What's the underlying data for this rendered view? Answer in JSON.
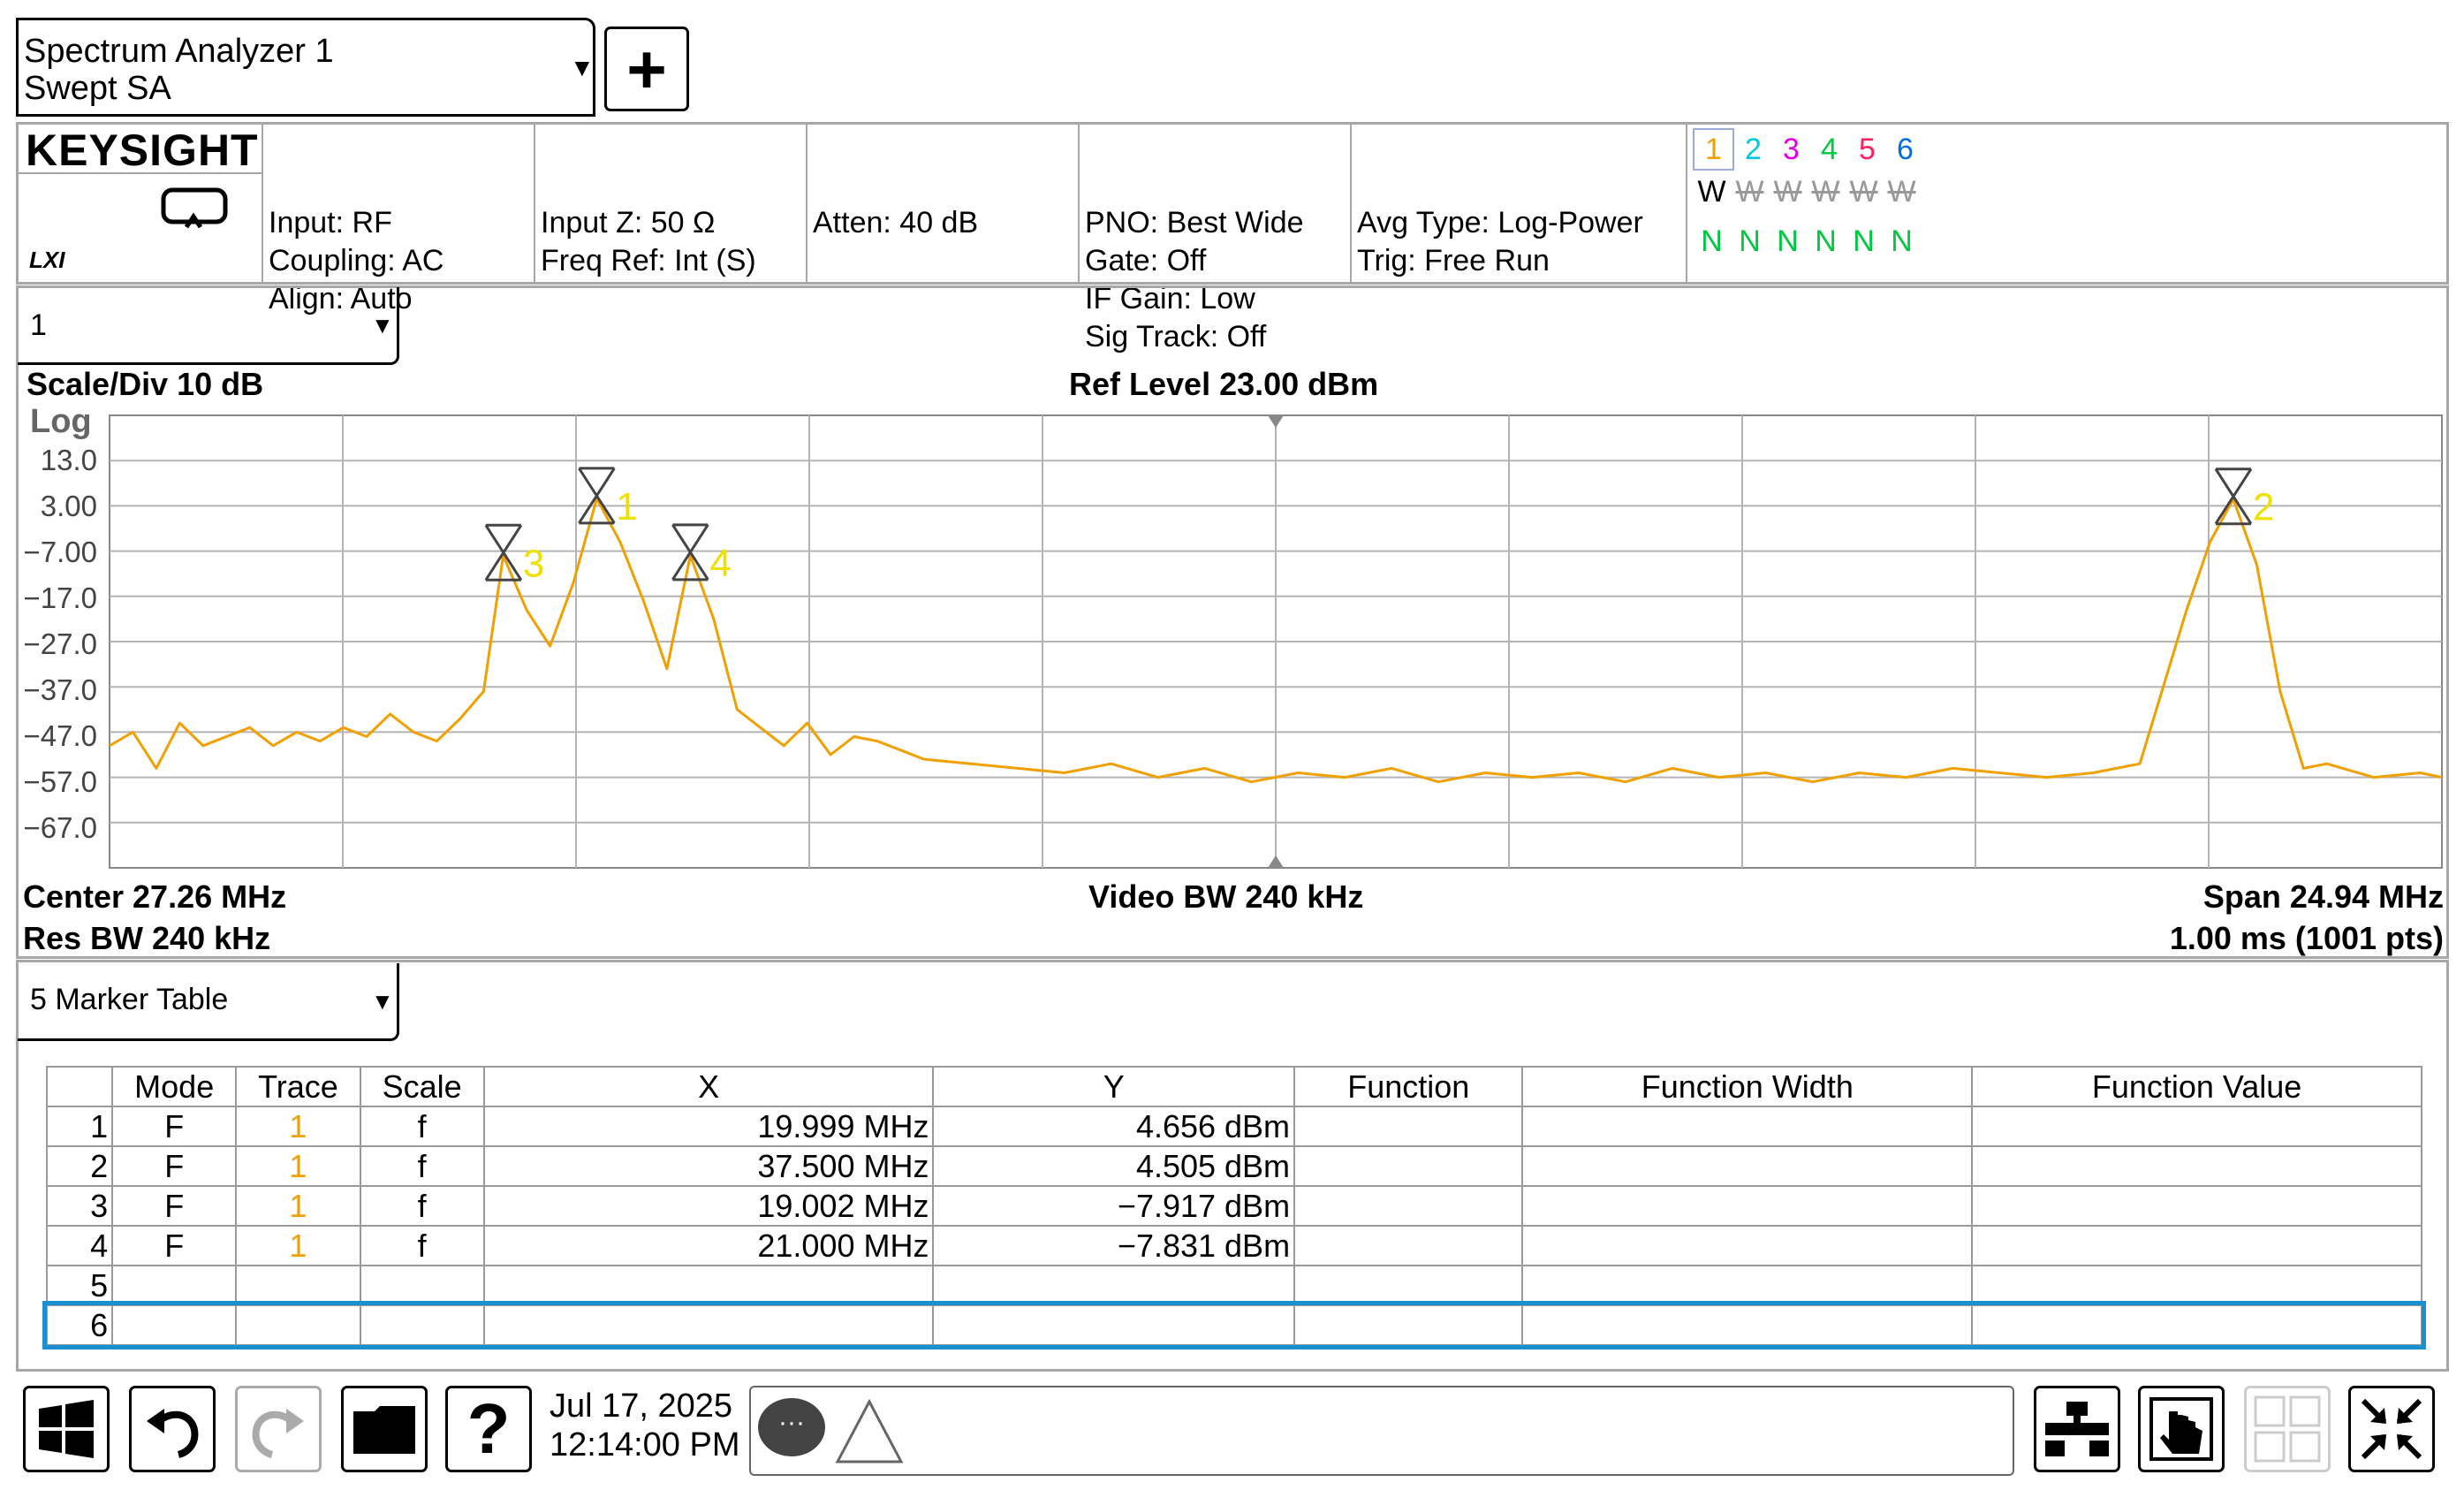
{
  "window": {
    "title_line1": "Spectrum Analyzer 1",
    "title_line2": "Swept SA",
    "dropdown_glyph": "▼",
    "add_glyph": "+"
  },
  "brand": {
    "logo": "KEYSIGHT",
    "lxi": "LXI"
  },
  "status": {
    "col1": [
      "Input: RF",
      "Coupling: AC",
      "Align: Auto"
    ],
    "col2": [
      "Input Z: 50 Ω",
      "",
      "Freq Ref: Int (S)"
    ],
    "col3": [
      "Atten: 40 dB"
    ],
    "col4": [
      "PNO: Best Wide",
      "Gate: Off",
      "IF Gain: Low",
      "Sig Track: Off"
    ],
    "col5": [
      "Avg Type: Log-Power",
      "Trig: Free Run"
    ],
    "traces": {
      "numbers": [
        "1",
        "2",
        "3",
        "4",
        "5",
        "6"
      ],
      "number_colors": [
        "#f0a000",
        "#00c8e0",
        "#e000e0",
        "#00c840",
        "#ff2060",
        "#0070e0"
      ],
      "mode_row": [
        "W",
        "W",
        "W",
        "W",
        "W",
        "W"
      ],
      "det_row": [
        "N",
        "N",
        "N",
        "N",
        "N",
        "N"
      ]
    }
  },
  "window1": {
    "selector": "1",
    "scale": "Scale/Div 10 dB",
    "ref_level": "Ref Level 23.00 dBm",
    "log_label": "Log",
    "y_ticks": [
      "13.0",
      "3.00",
      "−7.00",
      "−17.0",
      "−27.0",
      "−37.0",
      "−47.0",
      "−57.0",
      "−67.0"
    ],
    "center": "Center 27.26 MHz",
    "res_bw": "Res BW 240 kHz",
    "video_bw": "Video BW 240 kHz",
    "span": "Span 24.94 MHz",
    "sweep": "1.00 ms (1001 pts)"
  },
  "chart_data": {
    "type": "line",
    "series": [
      {
        "color": "#f0a000",
        "x": [
          14.79,
          15.04,
          15.29,
          15.54,
          15.79,
          16.04,
          16.29,
          16.54,
          16.79,
          17.04,
          17.29,
          17.54,
          17.79,
          18.04,
          18.29,
          18.54,
          18.79,
          19.0,
          19.25,
          19.5,
          19.75,
          20.0,
          20.25,
          20.5,
          20.75,
          21.0,
          21.25,
          21.5,
          21.75,
          22.0,
          22.25,
          22.5,
          22.75,
          23.0,
          23.5,
          24.0,
          24.5,
          25.0,
          25.5,
          26.0,
          26.5,
          27.0,
          27.5,
          28.0,
          28.5,
          29.0,
          29.5,
          30.0,
          30.5,
          31.0,
          31.5,
          32.0,
          32.5,
          33.0,
          33.5,
          34.0,
          34.5,
          35.0,
          35.5,
          36.0,
          36.5,
          37.0,
          37.25,
          37.5,
          37.75,
          38.0,
          38.25,
          38.5,
          39.0,
          39.5,
          39.73
        ],
        "y": [
          -50,
          -47,
          -55,
          -45,
          -50,
          -48,
          -46,
          -50,
          -47,
          -49,
          -46,
          -48,
          -43,
          -47,
          -49,
          -44,
          -38,
          -8,
          -20,
          -28,
          -14,
          4.6,
          -5,
          -18,
          -33,
          -8,
          -22,
          -42,
          -46,
          -50,
          -45,
          -52,
          -48,
          -49,
          -53,
          -54,
          -55,
          -56,
          -54,
          -57,
          -55,
          -58,
          -56,
          -57,
          -55,
          -58,
          -56,
          -57,
          -56,
          -58,
          -55,
          -57,
          -56,
          -58,
          -56,
          -57,
          -55,
          -56,
          -57,
          -56,
          -54,
          -20,
          -5,
          4.5,
          -10,
          -38,
          -55,
          -54,
          -57,
          -56,
          -57
        ]
      }
    ],
    "xlim": [
      14.79,
      39.73
    ],
    "ylim": [
      -77,
      23
    ],
    "ylabel": "Log",
    "grid": true,
    "markers": [
      {
        "label": "1",
        "x": 19.999,
        "y": 4.656
      },
      {
        "label": "2",
        "x": 37.5,
        "y": 4.505
      },
      {
        "label": "3",
        "x": 19.002,
        "y": -7.917
      },
      {
        "label": "4",
        "x": 21.0,
        "y": -7.831
      }
    ]
  },
  "marker_table": {
    "selector": "5 Marker Table",
    "headers": [
      "",
      "Mode",
      "Trace",
      "Scale",
      "X",
      "Y",
      "Function",
      "Function Width",
      "Function Value"
    ],
    "rows": [
      [
        "1",
        "F",
        "1",
        "f",
        "19.999 MHz",
        "4.656 dBm",
        "",
        "",
        ""
      ],
      [
        "2",
        "F",
        "1",
        "f",
        "37.500 MHz",
        "4.505 dBm",
        "",
        "",
        ""
      ],
      [
        "3",
        "F",
        "1",
        "f",
        "19.002 MHz",
        "−7.917 dBm",
        "",
        "",
        ""
      ],
      [
        "4",
        "F",
        "1",
        "f",
        "21.000 MHz",
        "−7.831 dBm",
        "",
        "",
        ""
      ],
      [
        "5",
        "",
        "",
        "",
        "",
        "",
        "",
        "",
        ""
      ],
      [
        "6",
        "",
        "",
        "",
        "",
        "",
        "",
        "",
        ""
      ]
    ]
  },
  "taskbar": {
    "date": "Jul 17, 2025",
    "time": "12:14:00 PM",
    "chat_glyph": "···",
    "help_glyph": "?"
  },
  "colors": {
    "trace": "#f0a000",
    "marker_x": "#444444",
    "marker_label": "#f0e000",
    "selection": "#1a90d0",
    "grid": "#b4b4b4"
  }
}
